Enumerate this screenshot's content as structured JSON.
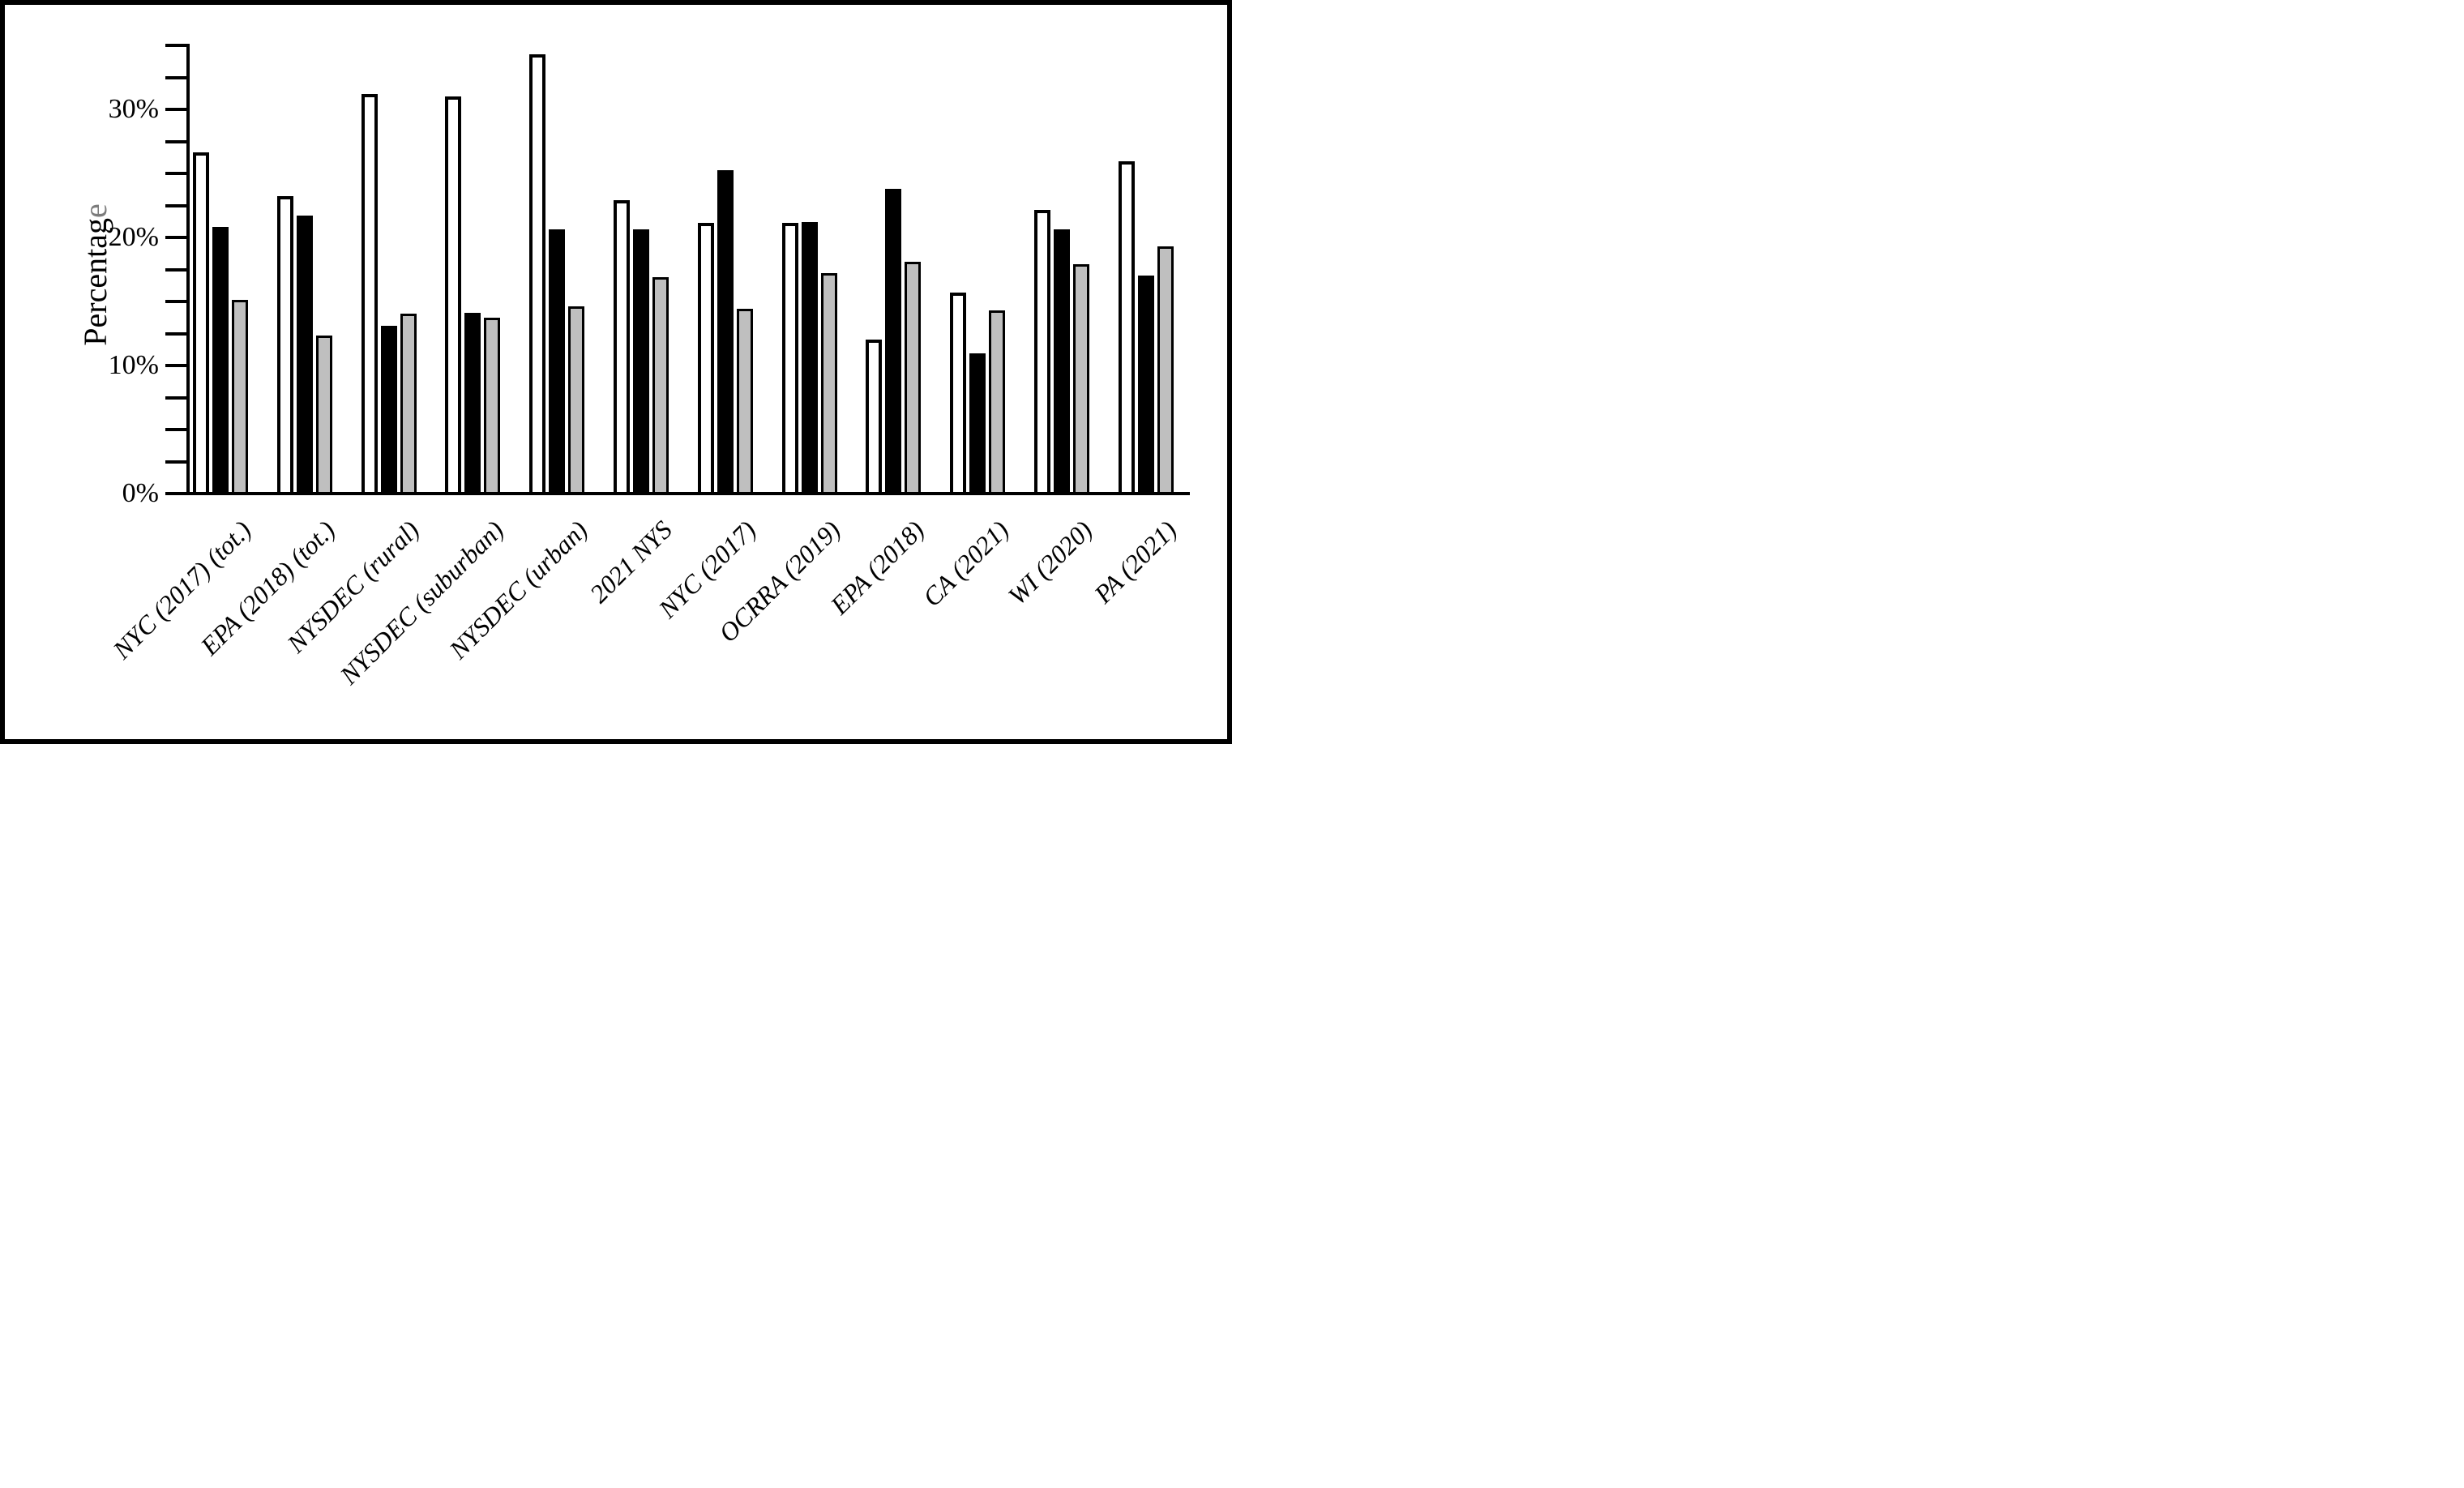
{
  "figure": {
    "background": "#ffffff",
    "border_color": "#000000",
    "text_color": "#000000",
    "ylabel_last_letter_color": "#7c7c7c"
  },
  "chart_data": {
    "type": "bar",
    "title": "",
    "xlabel": "",
    "ylabel": "Percentage",
    "ylim": [
      0,
      35
    ],
    "ytick_minor_step": 2.5,
    "grid": false,
    "legend": "none",
    "yticks": [
      {
        "value": 0,
        "label": "0%"
      },
      {
        "value": 10,
        "label": "10%"
      },
      {
        "value": 20,
        "label": "20%"
      },
      {
        "value": 30,
        "label": "30%"
      }
    ],
    "categories": [
      "NYC (2017) (tot.)",
      "EPA (2018) (tot.)",
      "NYSDEC (rural)",
      "NYSDEC (suburban)",
      "NYSDEC (urban)",
      "2021 NYS",
      "NYC (2017)",
      "OCRRA (2019)",
      "EPA (2018)",
      "CA (2021)",
      "WI (2020)",
      "PA (2021)"
    ],
    "series": [
      {
        "name": "white",
        "fill": "#ffffff",
        "outline": "#000000",
        "values": [
          26.5,
          23.1,
          31.1,
          30.9,
          34.2,
          22.8,
          21.0,
          21.0,
          11.9,
          15.6,
          22.0,
          25.8
        ]
      },
      {
        "name": "black",
        "fill": "#000000",
        "outline": "#000000",
        "values": [
          20.7,
          21.6,
          13.0,
          14.0,
          20.5,
          20.5,
          25.1,
          21.1,
          23.7,
          10.8,
          20.5,
          16.9
        ]
      },
      {
        "name": "gray",
        "fill": "#bfbfbf",
        "outline": "#000000",
        "values": [
          15.0,
          12.2,
          13.9,
          13.6,
          14.5,
          16.8,
          14.3,
          17.1,
          18.0,
          14.2,
          17.8,
          19.2
        ]
      }
    ]
  }
}
